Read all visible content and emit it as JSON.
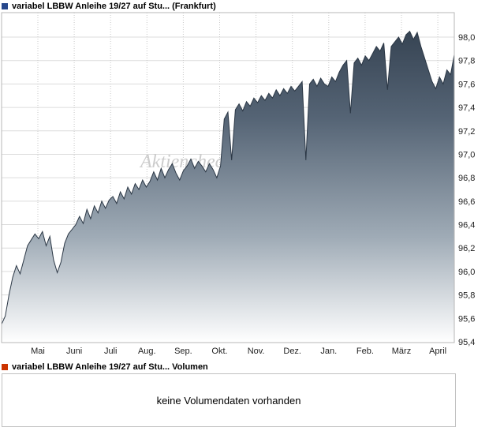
{
  "header": {
    "title": "variabel LBBW Anleihe 19/27 auf Stu... (Frankfurt)"
  },
  "volume_panel": {
    "legend": "variabel LBBW Anleihe 19/27 auf Stu... Volumen",
    "message": "keine Volumendaten vorhanden"
  },
  "watermark": "Aktiencheck",
  "colors": {
    "series_line": "#2b3745",
    "area_top": "#303d4c",
    "area_mid1": "#556475",
    "area_mid2": "#9fabb6",
    "area_bottom": "#ffffff",
    "grid_h": "#dcdcdc",
    "grid_v": "#c9c9c9",
    "plot_border": "#b7b7b7",
    "legend_price_marker": "#27488c",
    "legend_volume_marker": "#cc3300",
    "tick_text": "#222222",
    "watermark_color": "#cccccc"
  },
  "chart_data": {
    "type": "area",
    "title": "variabel LBBW Anleihe 19/27 auf Stu... (Frankfurt)",
    "xlabel": "",
    "ylabel": "",
    "grid": true,
    "legend_position": "top-left",
    "ylim": [
      95.4,
      98.0
    ],
    "x_tick_labels": [
      "Mai",
      "Juni",
      "Juli",
      "Aug.",
      "Sep.",
      "Okt.",
      "Nov.",
      "Dez.",
      "Jan.",
      "Feb.",
      "März",
      "April"
    ],
    "y_tick_values": [
      95.4,
      95.6,
      95.8,
      96.0,
      96.2,
      96.4,
      96.6,
      96.8,
      97.0,
      97.2,
      97.4,
      97.6,
      97.8,
      98.0
    ],
    "y_tick_labels": [
      "95,4",
      "95,6",
      "95,8",
      "96,0",
      "96,2",
      "96,4",
      "96,6",
      "96,8",
      "97,0",
      "97,2",
      "97,4",
      "97,6",
      "97,8",
      "98,0"
    ],
    "series": [
      {
        "name": "variabel LBBW Anleihe 19/27 auf Stu...",
        "values": [
          95.55,
          95.62,
          95.8,
          95.95,
          96.05,
          95.98,
          96.1,
          96.22,
          96.27,
          96.32,
          96.28,
          96.34,
          96.22,
          96.3,
          96.1,
          95.99,
          96.08,
          96.24,
          96.32,
          96.36,
          96.4,
          96.47,
          96.41,
          96.53,
          96.45,
          96.56,
          96.5,
          96.6,
          96.54,
          96.61,
          96.64,
          96.58,
          96.68,
          96.62,
          96.72,
          96.66,
          96.75,
          96.7,
          96.78,
          96.72,
          96.77,
          96.85,
          96.78,
          96.88,
          96.8,
          96.87,
          96.92,
          96.84,
          96.78,
          96.86,
          96.9,
          96.96,
          96.88,
          96.94,
          96.9,
          96.85,
          96.92,
          96.87,
          96.8,
          96.9,
          97.3,
          97.36,
          96.95,
          97.38,
          97.43,
          97.37,
          97.45,
          97.41,
          97.48,
          97.44,
          97.5,
          97.46,
          97.52,
          97.48,
          97.55,
          97.5,
          97.56,
          97.52,
          97.58,
          97.54,
          97.58,
          97.62,
          96.95,
          97.6,
          97.64,
          97.58,
          97.65,
          97.6,
          97.58,
          97.66,
          97.62,
          97.7,
          97.76,
          97.8,
          97.35,
          97.78,
          97.82,
          97.76,
          97.84,
          97.8,
          97.86,
          97.92,
          97.88,
          97.95,
          97.55,
          97.92,
          97.96,
          98.0,
          97.94,
          98.02,
          98.05,
          97.98,
          98.04,
          97.92,
          97.82,
          97.72,
          97.62,
          97.56,
          97.66,
          97.6,
          97.72,
          97.68,
          97.85
        ]
      }
    ]
  }
}
